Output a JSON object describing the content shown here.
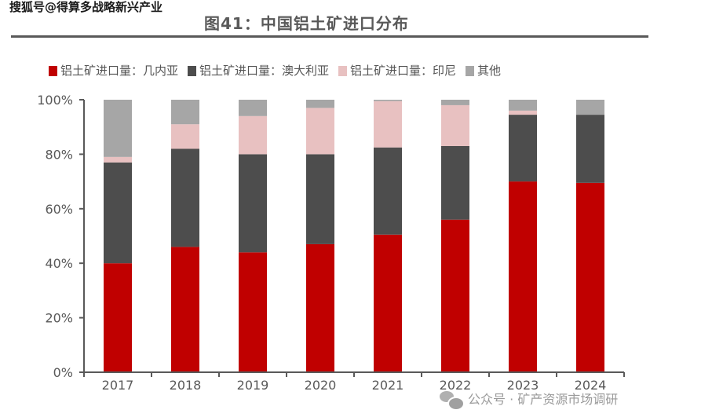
{
  "watermark_top": "搜狐号@得算多战略新兴产业",
  "figure_title": "图41：中国铝土矿进口分布",
  "watermark_bottom": "公众号 · 矿产资源市场调研",
  "colors": {
    "guinea": "#C00000",
    "australia": "#4D4D4D",
    "indonesia": "#E8C1C1",
    "other": "#A6A6A6",
    "axis": "#595959"
  },
  "chart_data": {
    "type": "bar",
    "stacked": true,
    "title": "图41：中国铝土矿进口分布",
    "xlabel": "",
    "ylabel": "",
    "ylim": [
      0,
      100
    ],
    "yticks": [
      "0%",
      "20%",
      "40%",
      "60%",
      "80%",
      "100%"
    ],
    "ytick_values": [
      0,
      20,
      40,
      60,
      80,
      100
    ],
    "legend_position": "top",
    "grid": false,
    "categories": [
      "2017",
      "2018",
      "2019",
      "2020",
      "2021",
      "2022",
      "2023",
      "2024"
    ],
    "series": [
      {
        "name": "铝土矿进口量：几内亚",
        "color_key": "guinea",
        "values": [
          40,
          46,
          44,
          47,
          50.5,
          56,
          70,
          69.5
        ]
      },
      {
        "name": "铝土矿进口量：澳大利亚",
        "color_key": "australia",
        "values": [
          37,
          36,
          36,
          33,
          32,
          27,
          24.5,
          25
        ]
      },
      {
        "name": "铝土矿进口量：印尼",
        "color_key": "indonesia",
        "values": [
          2,
          9,
          14,
          17,
          17,
          15,
          1.5,
          0
        ]
      },
      {
        "name": "其他",
        "color_key": "other",
        "values": [
          21,
          9,
          6,
          3,
          0.5,
          2,
          4,
          5.5
        ]
      }
    ]
  }
}
